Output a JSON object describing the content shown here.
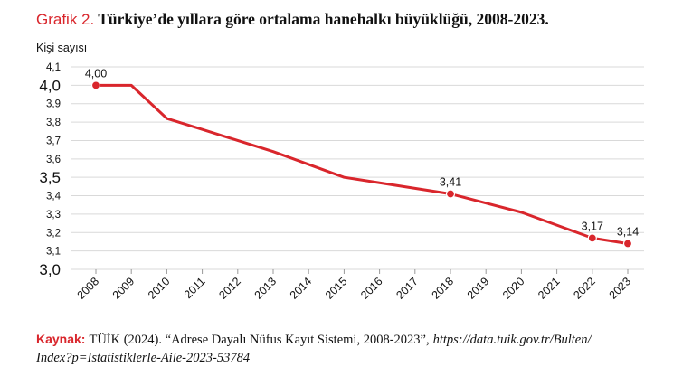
{
  "title": {
    "label": "Grafik 2.",
    "text": "Türkiye’de yıllara göre ortalama hanehalkı büyüklüğü, 2008-2023."
  },
  "source": {
    "label": "Kaynak:",
    "text": "TÜİK (2024). “Adrese Dayalı Nüfus Kayıt Sistemi, 2008-2023”,",
    "url_line1": "https://data.tuik.gov.tr/Bulten/",
    "url_line2": "Index?p=Istatistiklerle-Aile-2023-53784"
  },
  "colors": {
    "series": "#d9262c",
    "text": "#111111",
    "grid": "#d9d9d9"
  },
  "chart_data": {
    "type": "line",
    "title": "Türkiye’de yıllara göre ortalama hanehalkı büyüklüğü, 2008-2023.",
    "ylabel": "Kişi sayısı",
    "xlabel": "",
    "ylim": [
      3.0,
      4.1
    ],
    "grid": true,
    "categories": [
      "2008",
      "2009",
      "2010",
      "2011",
      "2012",
      "2013",
      "2014",
      "2015",
      "2016",
      "2017",
      "2018",
      "2019",
      "2020",
      "2021",
      "2022",
      "2023"
    ],
    "values": [
      4.0,
      4.0,
      3.82,
      3.76,
      3.7,
      3.64,
      3.57,
      3.5,
      3.47,
      3.44,
      3.41,
      3.36,
      3.31,
      3.24,
      3.17,
      3.14
    ],
    "y_ticks": [
      {
        "value": 3.0,
        "label": "3,0",
        "major": true
      },
      {
        "value": 3.1,
        "label": "3,1",
        "major": false
      },
      {
        "value": 3.2,
        "label": "3,2",
        "major": false
      },
      {
        "value": 3.3,
        "label": "3,3",
        "major": false
      },
      {
        "value": 3.4,
        "label": "3,4",
        "major": false
      },
      {
        "value": 3.5,
        "label": "3,5",
        "major": true
      },
      {
        "value": 3.6,
        "label": "3,6",
        "major": false
      },
      {
        "value": 3.7,
        "label": "3,7",
        "major": false
      },
      {
        "value": 3.8,
        "label": "3,8",
        "major": false
      },
      {
        "value": 3.9,
        "label": "3,9",
        "major": false
      },
      {
        "value": 4.0,
        "label": "4,0",
        "major": true
      },
      {
        "value": 4.1,
        "label": "4,1",
        "major": false
      }
    ],
    "annotations": [
      {
        "category": "2008",
        "value": 4.0,
        "label": "4,00"
      },
      {
        "category": "2018",
        "value": 3.41,
        "label": "3,41"
      },
      {
        "category": "2022",
        "value": 3.17,
        "label": "3,17"
      },
      {
        "category": "2023",
        "value": 3.14,
        "label": "3,14"
      }
    ]
  }
}
